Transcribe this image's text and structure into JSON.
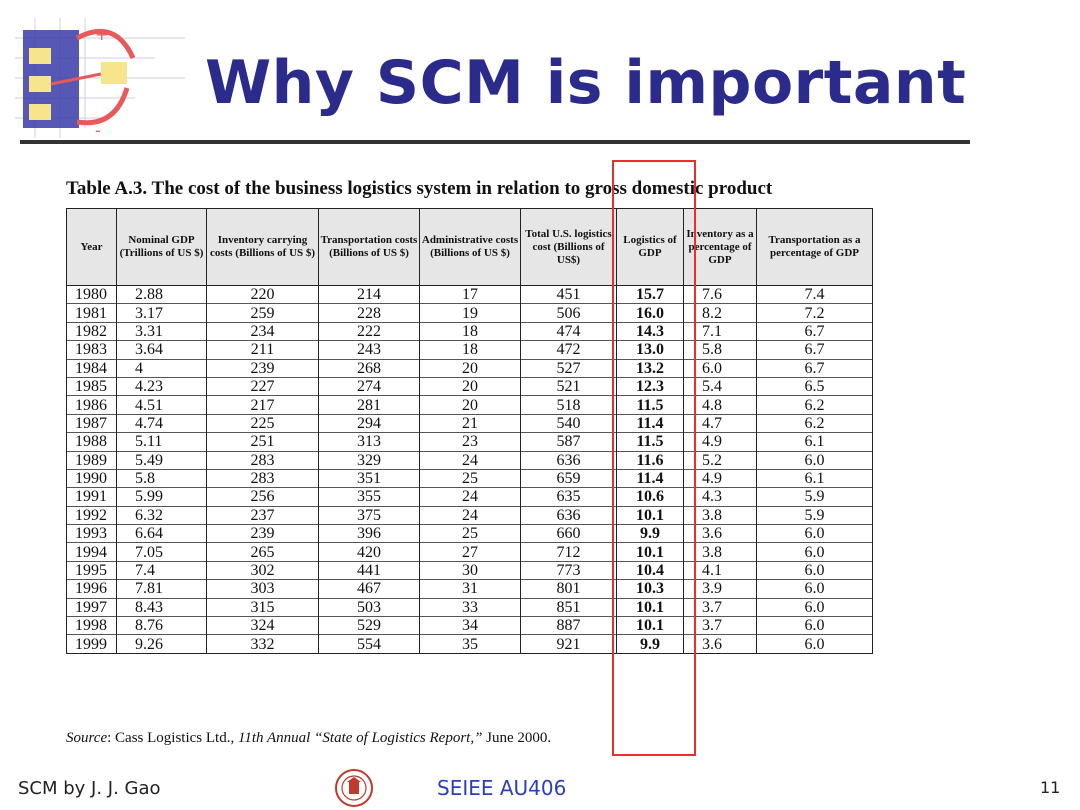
{
  "slide": {
    "title": "Why SCM is important",
    "page_number": "11"
  },
  "table": {
    "caption": "Table A.3. The cost of the business logistics system in relation to gross domestic product",
    "headers": [
      "Year",
      "Nominal GDP (Trillions of US $)",
      "Inventory carrying costs (Billions of US $)",
      "Transportation costs (Billions of US $)",
      "Administrative costs (Billions of US $)",
      "Total U.S. logistics cost (Billions of US$)",
      "Logistics of GDP",
      "Inventory as a percentage of GDP",
      "Transportation as a percentage of GDP"
    ],
    "rows": [
      [
        "1980",
        "2.88",
        "220",
        "214",
        "17",
        "451",
        "15.7",
        "7.6",
        "7.4"
      ],
      [
        "1981",
        "3.17",
        "259",
        "228",
        "19",
        "506",
        "16.0",
        "8.2",
        "7.2"
      ],
      [
        "1982",
        "3.31",
        "234",
        "222",
        "18",
        "474",
        "14.3",
        "7.1",
        "6.7"
      ],
      [
        "1983",
        "3.64",
        "211",
        "243",
        "18",
        "472",
        "13.0",
        "5.8",
        "6.7"
      ],
      [
        "1984",
        "4",
        "239",
        "268",
        "20",
        "527",
        "13.2",
        "6.0",
        "6.7"
      ],
      [
        "1985",
        "4.23",
        "227",
        "274",
        "20",
        "521",
        "12.3",
        "5.4",
        "6.5"
      ],
      [
        "1986",
        "4.51",
        "217",
        "281",
        "20",
        "518",
        "11.5",
        "4.8",
        "6.2"
      ],
      [
        "1987",
        "4.74",
        "225",
        "294",
        "21",
        "540",
        "11.4",
        "4.7",
        "6.2"
      ],
      [
        "1988",
        "5.11",
        "251",
        "313",
        "23",
        "587",
        "11.5",
        "4.9",
        "6.1"
      ],
      [
        "1989",
        "5.49",
        "283",
        "329",
        "24",
        "636",
        "11.6",
        "5.2",
        "6.0"
      ],
      [
        "1990",
        "5.8",
        "283",
        "351",
        "25",
        "659",
        "11.4",
        "4.9",
        "6.1"
      ],
      [
        "1991",
        "5.99",
        "256",
        "355",
        "24",
        "635",
        "10.6",
        "4.3",
        "5.9"
      ],
      [
        "1992",
        "6.32",
        "237",
        "375",
        "24",
        "636",
        "10.1",
        "3.8",
        "5.9"
      ],
      [
        "1993",
        "6.64",
        "239",
        "396",
        "25",
        "660",
        "9.9",
        "3.6",
        "6.0"
      ],
      [
        "1994",
        "7.05",
        "265",
        "420",
        "27",
        "712",
        "10.1",
        "3.8",
        "6.0"
      ],
      [
        "1995",
        "7.4",
        "302",
        "441",
        "30",
        "773",
        "10.4",
        "4.1",
        "6.0"
      ],
      [
        "1996",
        "7.81",
        "303",
        "467",
        "31",
        "801",
        "10.3",
        "3.9",
        "6.0"
      ],
      [
        "1997",
        "8.43",
        "315",
        "503",
        "33",
        "851",
        "10.1",
        "3.7",
        "6.0"
      ],
      [
        "1998",
        "8.76",
        "324",
        "529",
        "34",
        "887",
        "10.1",
        "3.7",
        "6.0"
      ],
      [
        "1999",
        "9.26",
        "332",
        "554",
        "35",
        "921",
        "9.9",
        "3.6",
        "6.0"
      ]
    ],
    "source_label": "Source",
    "source_prefix": ":  Cass Logistics Ltd., ",
    "source_italic": "11th Annual “State of Logistics Report,”",
    "source_suffix": " June 2000."
  },
  "footer": {
    "left": "SCM by J. J. Gao",
    "center": "SEIEE AU406"
  },
  "icons": {
    "logo": "flowchart-logo-icon",
    "seal": "university-seal-icon"
  },
  "colors": {
    "title": "#2b2b8c",
    "highlight": "#e53030",
    "footer_center": "#2b3fb8"
  }
}
